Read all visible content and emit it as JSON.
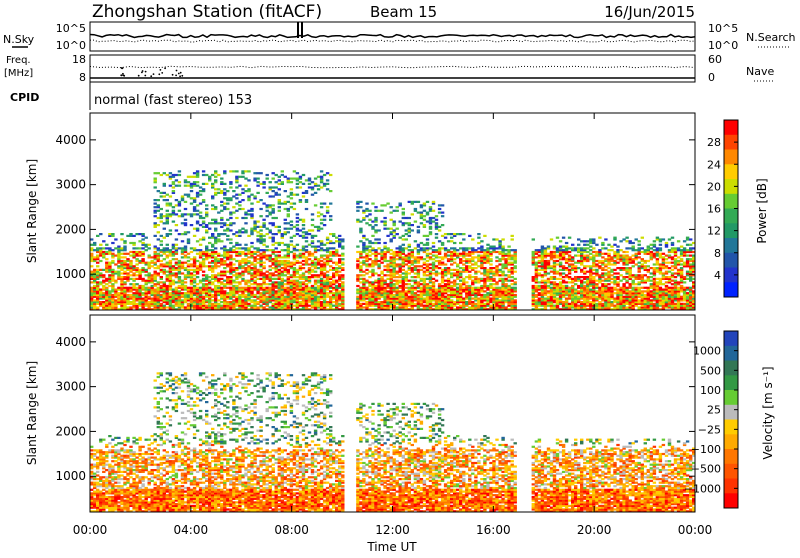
{
  "header": {
    "station": "Zhongshan Station (fitACF)",
    "beam": "Beam 15",
    "date": "16/Jun/2015"
  },
  "panels": {
    "nsky": {
      "left_label": "N.Sky",
      "left_ticks": [
        "10^5",
        "10^0"
      ],
      "right_ticks": [
        "10^5",
        "10^0"
      ],
      "right_label": "N.Search"
    },
    "freq": {
      "left_label_1": "Freq.",
      "left_label_2": "[MHz]",
      "left_ticks": [
        "18",
        "8"
      ],
      "right_ticks": [
        "60",
        "0"
      ],
      "right_label": "Nave"
    },
    "cpid": {
      "label": "CPID",
      "text": "normal (fast stereo) 153"
    }
  },
  "colorbars": {
    "power": {
      "label": "Power [dB]",
      "ticks": [
        "28",
        "24",
        "20",
        "16",
        "12",
        "8",
        "4"
      ],
      "colors": [
        "#ff0000",
        "#ff4400",
        "#ff8800",
        "#ffcc00",
        "#ccdd00",
        "#66cc33",
        "#33aa55",
        "#229966",
        "#227799",
        "#2255aa",
        "#2233cc",
        "#0022ff"
      ]
    },
    "velocity": {
      "label": "Velocity [m s⁻¹]",
      "ticks": [
        "1000",
        "500",
        "100",
        "25",
        "−25",
        "−100",
        "−500",
        "−1000"
      ],
      "colors": [
        "#2244bb",
        "#226699",
        "#337755",
        "#339944",
        "#66cc33",
        "#bbbbbb",
        "#ffcc00",
        "#ffaa00",
        "#ff7700",
        "#ff5500",
        "#ff3300",
        "#ff0000"
      ]
    }
  },
  "chart_data": {
    "type": "heatmap",
    "xlabel": "Time UT",
    "x_ticks": [
      "00:00",
      "04:00",
      "08:00",
      "12:00",
      "16:00",
      "20:00",
      "00:00"
    ],
    "xlim_hours": [
      0,
      24
    ],
    "ylabel": "Slant Range [km]",
    "y_ticks": [
      1000,
      2000,
      3000,
      4000
    ],
    "ylim_km": [
      200,
      4600
    ],
    "panels": [
      "power",
      "velocity"
    ],
    "echo_regions": [
      {
        "t_start": 0.0,
        "t_end": 6.0,
        "r_min": 200,
        "r_max": 1900
      },
      {
        "t_start": 2.5,
        "t_end": 9.5,
        "r_min": 1500,
        "r_max": 3300
      },
      {
        "t_start": 6.0,
        "t_end": 10.0,
        "r_min": 200,
        "r_max": 1900
      },
      {
        "t_start": 10.5,
        "t_end": 16.8,
        "r_min": 200,
        "r_max": 1900
      },
      {
        "t_start": 10.5,
        "t_end": 14.0,
        "r_min": 1800,
        "r_max": 2600
      },
      {
        "t_start": 17.5,
        "t_end": 24.0,
        "r_min": 200,
        "r_max": 1800
      }
    ]
  }
}
